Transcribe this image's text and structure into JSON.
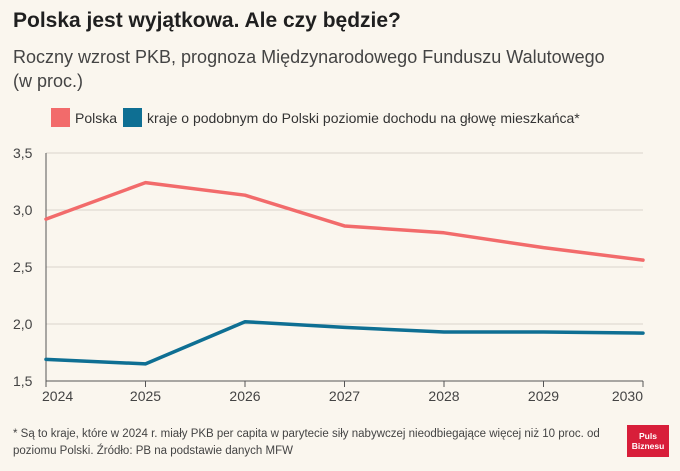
{
  "title": "Polska jest wyjątkowa. Ale czy będzie?",
  "subtitle": "Roczny wzrost PKB, prognoza Międzynarodowego Funduszu Walutowego (w proc.)",
  "footnote": "* Są to kraje, które w 2024 r. miały PKB per capita w parytecie siły nabywczej nieodbiegające więcej niż 10 proc. od poziomu Polski. Źródło: PB na podstawie danych MFW",
  "logo": {
    "line1": "Puls",
    "line2": "Biznesu",
    "color": "#d81e3a"
  },
  "chart_data": {
    "type": "line",
    "x": [
      2024,
      2025,
      2026,
      2027,
      2028,
      2029,
      2030
    ],
    "x_tick_labels": [
      "2024",
      "2025",
      "2026",
      "2027",
      "2028",
      "2029",
      "2030"
    ],
    "ylim": [
      1.5,
      3.5
    ],
    "y_ticks": [
      1.5,
      2.0,
      2.5,
      3.0,
      3.5
    ],
    "y_tick_labels": [
      "1,5",
      "2,0",
      "2,5",
      "3,0",
      "3,5"
    ],
    "grid": true,
    "legend_position": "top-left",
    "series": [
      {
        "name": "Polska",
        "color": "#f26b6b",
        "values": [
          2.92,
          3.24,
          3.13,
          2.86,
          2.8,
          2.67,
          2.56
        ]
      },
      {
        "name": "kraje o podobnym do Polski poziomie dochodu na głowę mieszkańca*",
        "color": "#0e6f93",
        "values": [
          1.69,
          1.65,
          2.02,
          1.97,
          1.93,
          1.93,
          1.92
        ]
      }
    ]
  }
}
